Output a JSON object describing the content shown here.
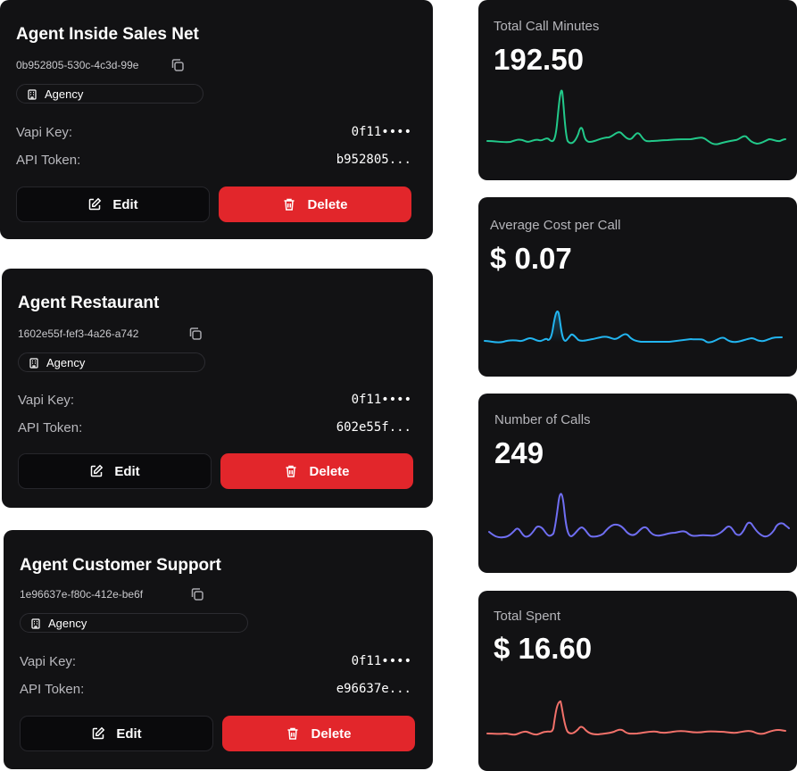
{
  "agents": [
    {
      "title": "Agent Inside Sales Net",
      "id": "0b952805-530c-4c3d-99e",
      "badge": "Agency",
      "vapi_label": "Vapi Key:",
      "vapi_value": "0f11••••",
      "api_label": "API Token:",
      "api_value": "b952805...",
      "edit_label": "Edit",
      "delete_label": "Delete"
    },
    {
      "title": "Agent Restaurant",
      "id": "1602e55f-fef3-4a26-a742",
      "badge": "Agency",
      "vapi_label": "Vapi Key:",
      "vapi_value": "0f11••••",
      "api_label": "API Token:",
      "api_value": "602e55f...",
      "edit_label": "Edit",
      "delete_label": "Delete"
    },
    {
      "title": "Agent Customer Support",
      "id": "1e96637e-f80c-412e-be6f",
      "badge": "Agency",
      "vapi_label": "Vapi Key:",
      "vapi_value": "0f11••••",
      "api_label": "API Token:",
      "api_value": "e96637e...",
      "edit_label": "Edit",
      "delete_label": "Delete"
    }
  ],
  "stats": [
    {
      "label": "Total Call Minutes",
      "value": "192.50",
      "color": "#22c98a"
    },
    {
      "label": "Average Cost per Call",
      "value": "$ 0.07",
      "color": "#22b5f0"
    },
    {
      "label": "Number of Calls",
      "value": "249",
      "color": "#6f6ef2"
    },
    {
      "label": "Total Spent",
      "value": "$ 16.60",
      "color": "#f2716a"
    }
  ]
}
